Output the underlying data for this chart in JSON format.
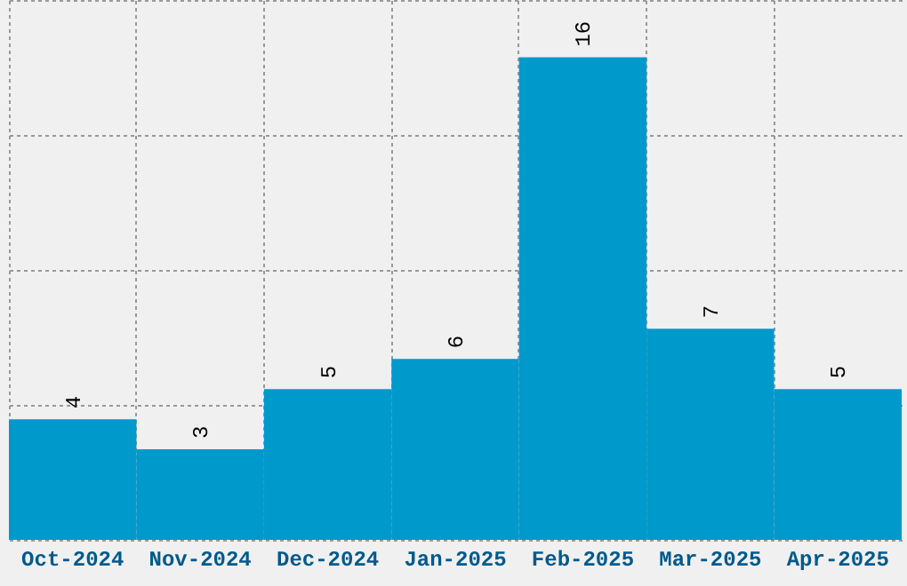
{
  "chart_data": {
    "type": "bar",
    "categories": [
      "Oct-2024",
      "Nov-2024",
      "Dec-2024",
      "Jan-2025",
      "Feb-2025",
      "Mar-2025",
      "Apr-2025"
    ],
    "values": [
      4,
      3,
      5,
      6,
      16,
      7,
      5
    ],
    "color": "#0099cc",
    "ylim": [
      0,
      17.9
    ],
    "yticks": [
      {
        "value": 0,
        "label": null
      },
      {
        "value": 4.475,
        "label": null
      },
      {
        "value": 8.95,
        "label": null
      },
      {
        "value": 13.425,
        "label": null
      },
      {
        "value": 17.9,
        "label": null
      }
    ],
    "tick_labels": "x",
    "grid": true,
    "data_labels": true
  }
}
